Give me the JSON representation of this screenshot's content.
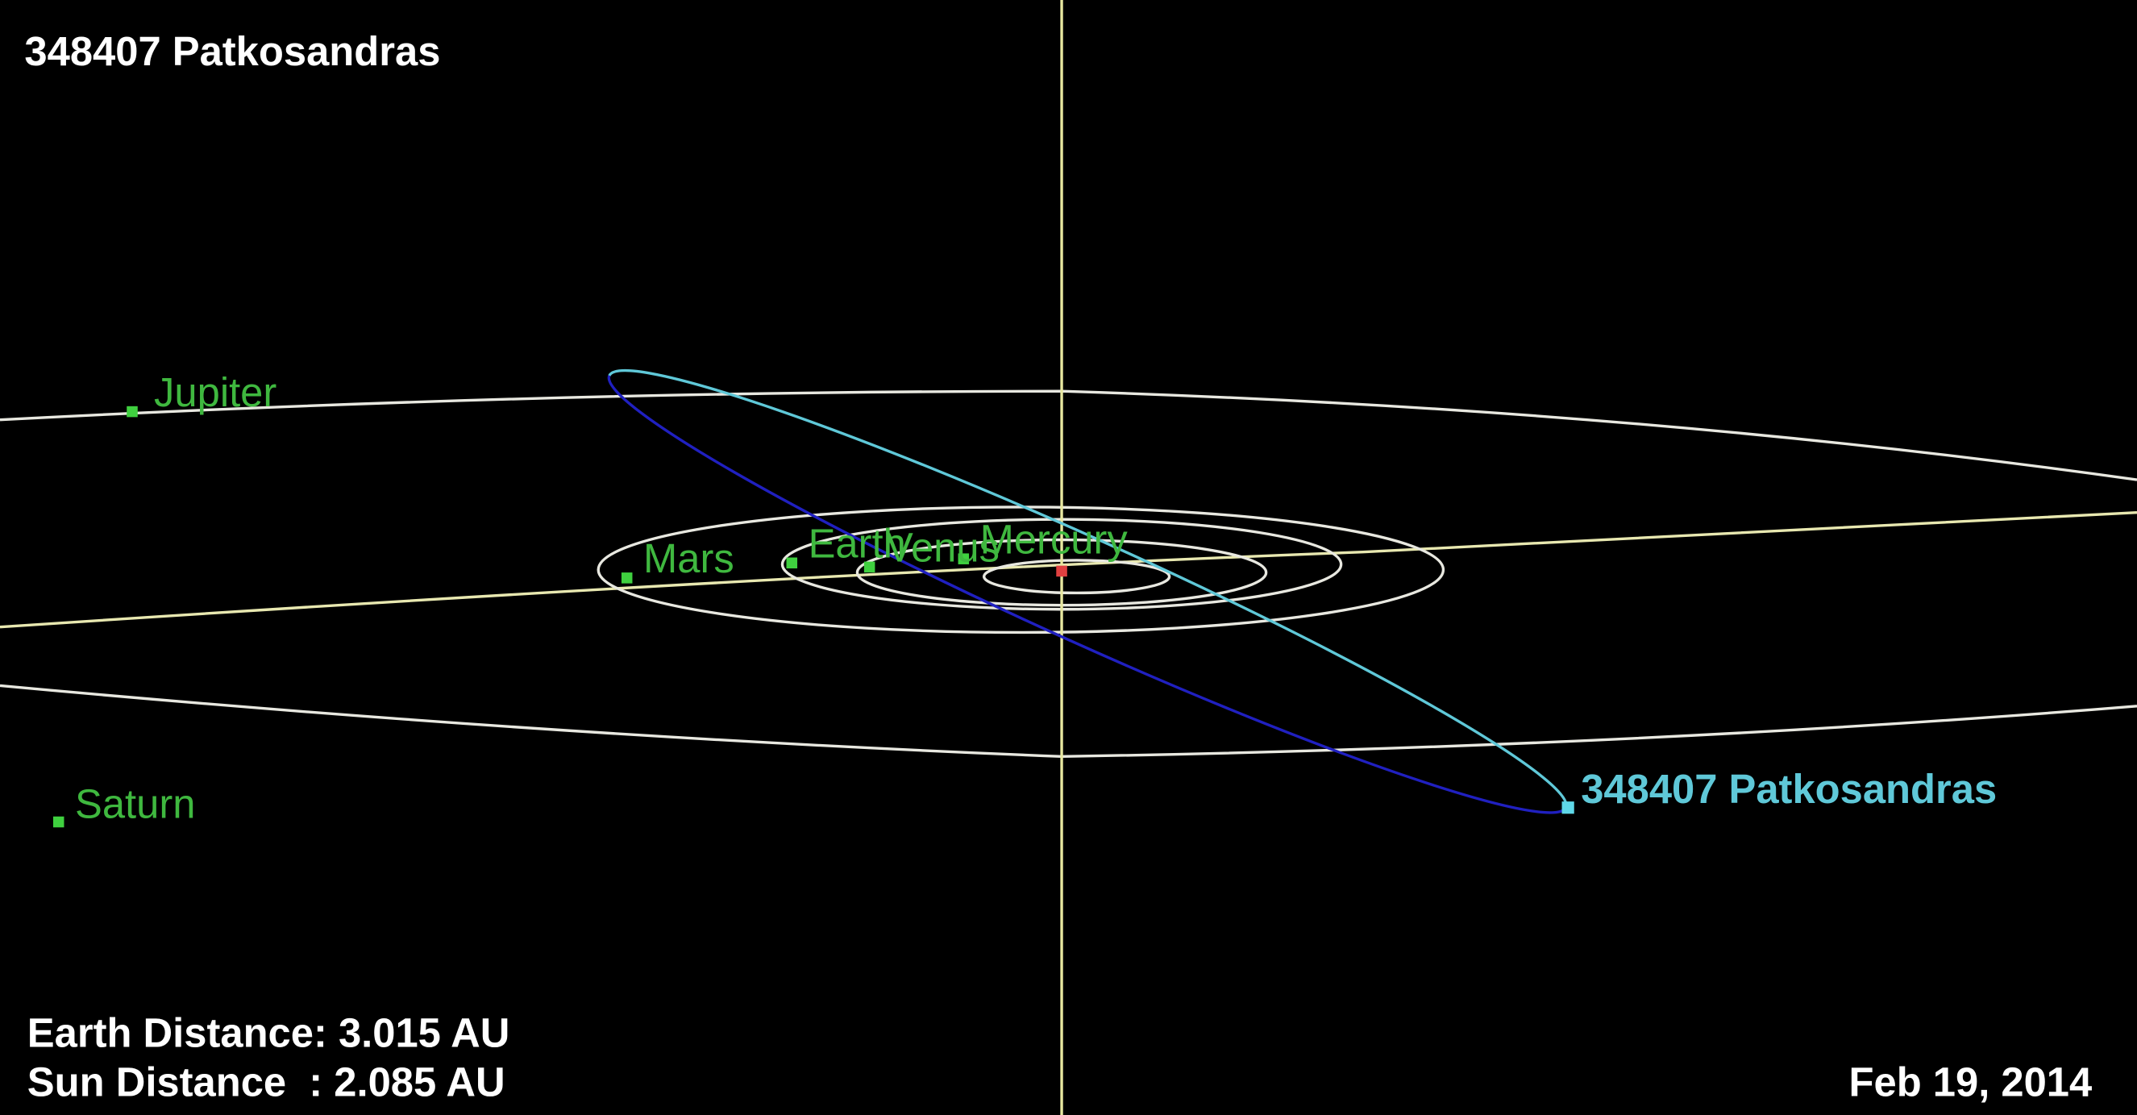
{
  "header": {
    "title": "348407 Patkosandras"
  },
  "bodies": [
    {
      "label": "Jupiter"
    },
    {
      "label": "Mars"
    },
    {
      "label": "Earth"
    },
    {
      "label": "Venus"
    },
    {
      "label": "Mercury"
    },
    {
      "label": "Saturn"
    }
  ],
  "object": {
    "label": "348407 Patkosandras"
  },
  "info": {
    "earth_distance": "Earth Distance: 3.015 AU",
    "sun_distance": "Sun Distance  : 2.085 AU",
    "date": "Feb 19, 2014"
  }
}
